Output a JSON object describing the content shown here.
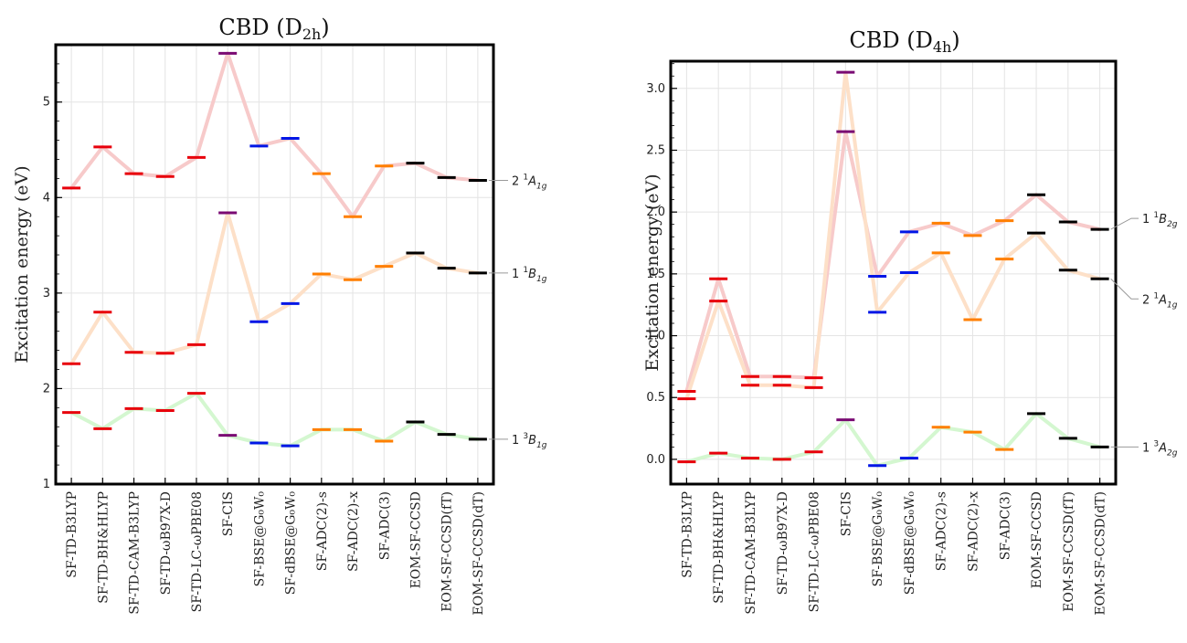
{
  "chart_data": [
    {
      "type": "line",
      "title": "CBD (D",
      "title_sub": "2h",
      "title_tail": ")",
      "ylabel": "Excitation energy (eV)",
      "ylim": [
        1.0,
        5.6
      ],
      "yticks": [
        1,
        2,
        3,
        4,
        5
      ],
      "ytick_labels": [
        "1",
        "2",
        "3",
        "4",
        "5"
      ],
      "categories": [
        "SF-TD-B3LYP",
        "SF-TD-BH&HLYP",
        "SF-TD-CAM-B3LYP",
        "SF-TD-ωB97X-D",
        "SF-TD-LC-ωPBE08",
        "SF-CIS",
        "SF-BSE@G₀W₀",
        "SF-dBSE@G₀W₀",
        "SF-ADC(2)-s",
        "SF-ADC(2)-x",
        "SF-ADC(3)",
        "EOM-SF-CCSD",
        "EOM-SF-CCSD(fT)",
        "EOM-SF-CCSD(dT)"
      ],
      "series": [
        {
          "name": "2 ¹A₁g",
          "label_main": "2 ",
          "label_sup": "1",
          "label_sym": "A",
          "label_sub": "1g",
          "line_color": "#f7caca",
          "values": [
            4.1,
            4.53,
            4.25,
            4.22,
            4.42,
            5.51,
            4.54,
            4.62,
            4.25,
            3.8,
            4.33,
            4.36,
            4.21,
            4.18
          ]
        },
        {
          "name": "1 ¹B₁g",
          "label_main": "1 ",
          "label_sup": "1",
          "label_sym": "B",
          "label_sub": "1g",
          "line_color": "#fde0c8",
          "values": [
            2.26,
            2.8,
            2.38,
            2.37,
            2.46,
            3.84,
            2.7,
            2.89,
            3.2,
            3.14,
            3.28,
            3.42,
            3.26,
            3.21
          ]
        },
        {
          "name": "1 ³B₁g",
          "label_main": "1 ",
          "label_sup": "3",
          "label_sym": "B",
          "label_sub": "1g",
          "line_color": "#d4f7d0",
          "values": [
            1.75,
            1.58,
            1.79,
            1.77,
            1.95,
            1.51,
            1.43,
            1.4,
            1.57,
            1.57,
            1.45,
            1.65,
            1.52,
            1.47
          ]
        }
      ]
    },
    {
      "type": "line",
      "title": "CBD (D",
      "title_sub": "4h",
      "title_tail": ")",
      "ylabel": "Excitation energy (eV)",
      "ylim": [
        -0.2,
        3.22
      ],
      "yticks": [
        0.0,
        0.5,
        1.0,
        1.5,
        2.0,
        2.5,
        3.0
      ],
      "ytick_labels": [
        "0.0",
        "0.5",
        "1.0",
        "1.5",
        "2.0",
        "2.5",
        "3.0"
      ],
      "categories": [
        "SF-TD-B3LYP",
        "SF-TD-BH&HLYP",
        "SF-TD-CAM-B3LYP",
        "SF-TD-ωB97X-D",
        "SF-TD-LC-ωPBE08",
        "SF-CIS",
        "SF-BSE@G₀W₀",
        "SF-dBSE@G₀W₀",
        "SF-ADC(2)-s",
        "SF-ADC(2)-x",
        "SF-ADC(3)",
        "EOM-SF-CCSD",
        "EOM-SF-CCSD(fT)",
        "EOM-SF-CCSD(dT)"
      ],
      "series": [
        {
          "name": "1 ¹B₂g",
          "label_main": "1 ",
          "label_sup": "1",
          "label_sym": "B",
          "label_sub": "2g",
          "line_color": "#f7caca",
          "values": [
            0.55,
            1.46,
            0.67,
            0.67,
            0.66,
            2.65,
            1.48,
            1.84,
            1.91,
            1.81,
            1.93,
            2.14,
            1.92,
            1.86
          ]
        },
        {
          "name": "2 ¹A₁g",
          "label_main": "2 ",
          "label_sup": "1",
          "label_sym": "A",
          "label_sub": "1g",
          "line_color": "#fde0c8",
          "values": [
            0.49,
            1.28,
            0.6,
            0.6,
            0.58,
            3.13,
            1.19,
            1.51,
            1.67,
            1.13,
            1.62,
            1.83,
            1.53,
            1.46
          ]
        },
        {
          "name": "1 ³A₂g",
          "label_main": "1 ",
          "label_sup": "3",
          "label_sym": "A",
          "label_sub": "2g",
          "line_color": "#d4f7d0",
          "values": [
            -0.02,
            0.05,
            0.01,
            0.0,
            0.06,
            0.32,
            -0.05,
            0.01,
            0.26,
            0.22,
            0.08,
            0.37,
            0.17,
            0.1
          ]
        }
      ]
    }
  ],
  "marker_colors": [
    "#e8000b",
    "#e8000b",
    "#e8000b",
    "#e8000b",
    "#e8000b",
    "#7a0a73",
    "#0016e6",
    "#0016e6",
    "#ff7f00",
    "#ff7f00",
    "#ff7f00",
    "#000000",
    "#000000",
    "#000000"
  ]
}
